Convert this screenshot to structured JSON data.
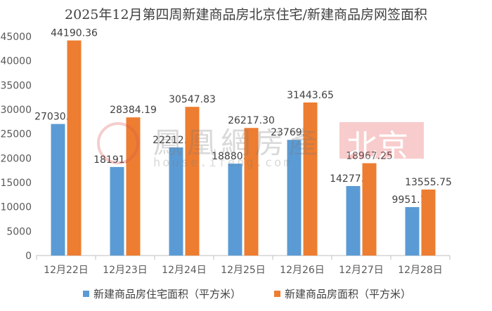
{
  "chart_data": {
    "type": "bar",
    "title": "2025年12月第四周新建商品房北京住宅/新建商品房网签面积",
    "categories": [
      "12月22日",
      "12月23日",
      "12月24日",
      "12月25日",
      "12月26日",
      "12月27日",
      "12月28日"
    ],
    "series": [
      {
        "name": "新建商品房住宅面积（平方米）",
        "color": "#5b9bd5",
        "values": [
          27030.58,
          18191.1,
          22212.75,
          18880.28,
          23769.12,
          14277.66,
          9951.17
        ],
        "labels": [
          "27030.58",
          "18191.10",
          "22212.75",
          "18880.28",
          "23769.12",
          "14277.66",
          "9951.17"
        ]
      },
      {
        "name": "新建商品房面积（平方米）",
        "color": "#ed7d31",
        "values": [
          44190.36,
          28384.19,
          30547.83,
          26217.3,
          31443.65,
          18967.25,
          13555.75
        ],
        "labels": [
          "44190.36",
          "28384.19",
          "30547.83",
          "26217.30",
          "31443.65",
          "18967.25",
          "13555.75"
        ]
      }
    ],
    "ylim": [
      0,
      45000
    ],
    "yticks": [
      0,
      5000,
      10000,
      15000,
      20000,
      25000,
      30000,
      35000,
      40000,
      45000
    ],
    "ytick_labels": [
      "0",
      "5000",
      "10000",
      "15000",
      "20000",
      "25000",
      "30000",
      "35000",
      "40000",
      "45000"
    ],
    "grid": false,
    "legend": "bottom"
  },
  "watermark": {
    "text": "鳳凰網房產",
    "subtext": "house.ifeng.com",
    "city": "北京"
  }
}
